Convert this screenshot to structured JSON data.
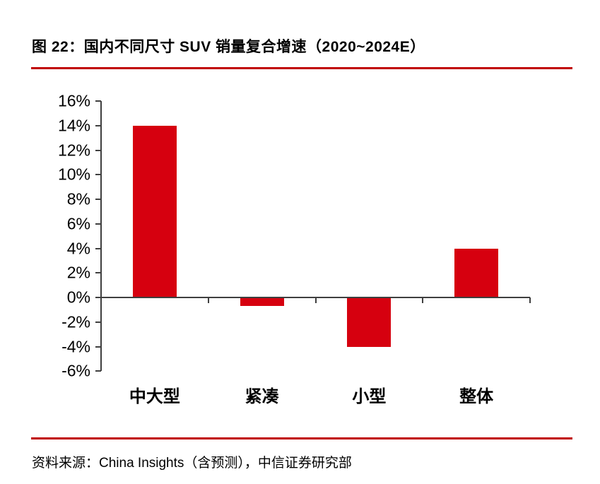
{
  "figure": {
    "title": "图 22：国内不同尺寸 SUV 销量复合增速（2020~2024E）"
  },
  "source": {
    "text": "资料来源：China Insights（含预测），中信证券研究部"
  },
  "colors": {
    "bar": "#D6000F",
    "rule": "#C00000",
    "axis": "#3F3F3F",
    "text": "#000000",
    "background": "#FFFFFF"
  },
  "chart_data": {
    "type": "bar",
    "categories": [
      "中大型",
      "紧凑",
      "小型",
      "整体"
    ],
    "values": [
      14,
      -0.7,
      -4,
      4
    ],
    "title": "图 22：国内不同尺寸 SUV 销量复合增速（2020~2024E）",
    "xlabel": "",
    "ylabel": "",
    "unit": "%",
    "ylim": [
      -6,
      16
    ],
    "ytick_step": 2,
    "ytick_labels": [
      "16%",
      "14%",
      "12%",
      "10%",
      "8%",
      "6%",
      "4%",
      "2%",
      "0%",
      "-2%",
      "-4%",
      "-6%"
    ],
    "grid": false,
    "legend": "none",
    "bar_color": "#D6000F"
  }
}
